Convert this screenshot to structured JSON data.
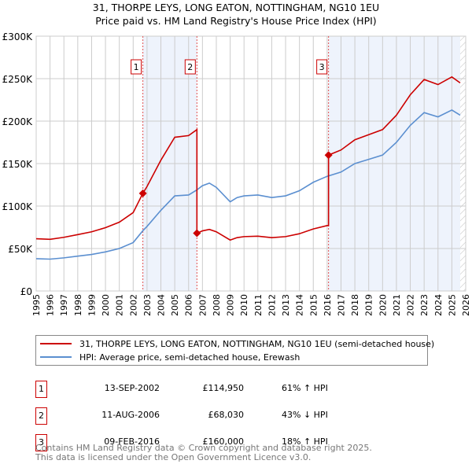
{
  "chart_data": {
    "type": "line",
    "title": "31, THORPE LEYS, LONG EATON, NOTTINGHAM, NG10 1EU",
    "subtitle": "Price paid vs. HM Land Registry's House Price Index (HPI)",
    "xlabel": "",
    "ylabel": "",
    "xlim": [
      1995,
      2026
    ],
    "ylim": [
      0,
      300000
    ],
    "y_ticks": [
      {
        "v": 0,
        "label": "£0"
      },
      {
        "v": 50000,
        "label": "£50K"
      },
      {
        "v": 100000,
        "label": "£100K"
      },
      {
        "v": 150000,
        "label": "£150K"
      },
      {
        "v": 200000,
        "label": "£200K"
      },
      {
        "v": 250000,
        "label": "£250K"
      },
      {
        "v": 300000,
        "label": "£300K"
      }
    ],
    "x_ticks": [
      "1995",
      "1996",
      "1997",
      "1998",
      "1999",
      "2000",
      "2001",
      "2002",
      "2003",
      "2004",
      "2005",
      "2006",
      "2007",
      "2008",
      "2009",
      "2010",
      "2011",
      "2012",
      "2013",
      "2014",
      "2015",
      "2016",
      "2017",
      "2018",
      "2019",
      "2020",
      "2021",
      "2022",
      "2023",
      "2024",
      "2025",
      "2026"
    ],
    "grid": true,
    "shaded_ranges": [
      [
        2002.7,
        2006.6
      ],
      [
        2016.1,
        2025.6
      ]
    ],
    "forecast_hatch_from": 2025.6,
    "series": [
      {
        "name": "31, THORPE LEYS, LONG EATON, NOTTINGHAM, NG10 1EU (semi-detached house)",
        "color": "#cc0000",
        "x": [
          1995,
          1996,
          1997,
          1998,
          1999,
          2000,
          2001,
          2002,
          2002.7,
          2003,
          2004,
          2005,
          2006,
          2006.6,
          2006.6,
          2007,
          2007.5,
          2008,
          2009,
          2009.5,
          2010,
          2011,
          2012,
          2013,
          2014,
          2015,
          2016,
          2016.1,
          2016.1,
          2017,
          2018,
          2019,
          2020,
          2021,
          2022,
          2023,
          2024,
          2025,
          2025.6
        ],
        "y": [
          61500,
          60800,
          63200,
          66400,
          69700,
          74500,
          81000,
          92300,
          115000,
          123000,
          154000,
          181000,
          183000,
          190000,
          68000,
          70800,
          72500,
          69700,
          60000,
          62800,
          64000,
          64500,
          62800,
          64000,
          67400,
          73000,
          77000,
          77000,
          160000,
          166000,
          178000,
          184000,
          190000,
          207000,
          231000,
          249000,
          243000,
          252000,
          245000
        ]
      },
      {
        "name": "HPI: Average price, semi-detached house, Erewash",
        "color": "#5b8fd0",
        "x": [
          1995,
          1996,
          1997,
          1998,
          1999,
          2000,
          2001,
          2002,
          2002.7,
          2003,
          2004,
          2005,
          2006,
          2006.6,
          2007,
          2007.5,
          2008,
          2009,
          2009.5,
          2010,
          2011,
          2012,
          2013,
          2014,
          2015,
          2016,
          2017,
          2018,
          2019,
          2020,
          2021,
          2022,
          2023,
          2024,
          2025,
          2025.6
        ],
        "y": [
          38000,
          37500,
          39000,
          41000,
          43000,
          46000,
          50000,
          57000,
          71000,
          76000,
          95000,
          112000,
          113000,
          119000,
          124000,
          127000,
          122000,
          105000,
          110000,
          112000,
          113000,
          110000,
          112000,
          118000,
          128000,
          135000,
          140000,
          150000,
          155000,
          160000,
          175000,
          195000,
          210000,
          205000,
          213000,
          207000
        ]
      }
    ],
    "sales": [
      {
        "num": "1",
        "x": 2002.7,
        "y": 114950,
        "date": "13-SEP-2002",
        "price": "£114,950",
        "hpi": "61% ↑ HPI"
      },
      {
        "num": "2",
        "x": 2006.6,
        "y": 68030,
        "date": "11-AUG-2006",
        "price": "£68,030",
        "hpi": "43% ↓ HPI"
      },
      {
        "num": "3",
        "x": 2016.1,
        "y": 160000,
        "date": "09-FEB-2016",
        "price": "£160,000",
        "hpi": "18% ↑ HPI"
      }
    ]
  },
  "footer": {
    "line1": "Contains HM Land Registry data © Crown copyright and database right 2025.",
    "line2": "This data is licensed under the Open Government Licence v3.0."
  }
}
